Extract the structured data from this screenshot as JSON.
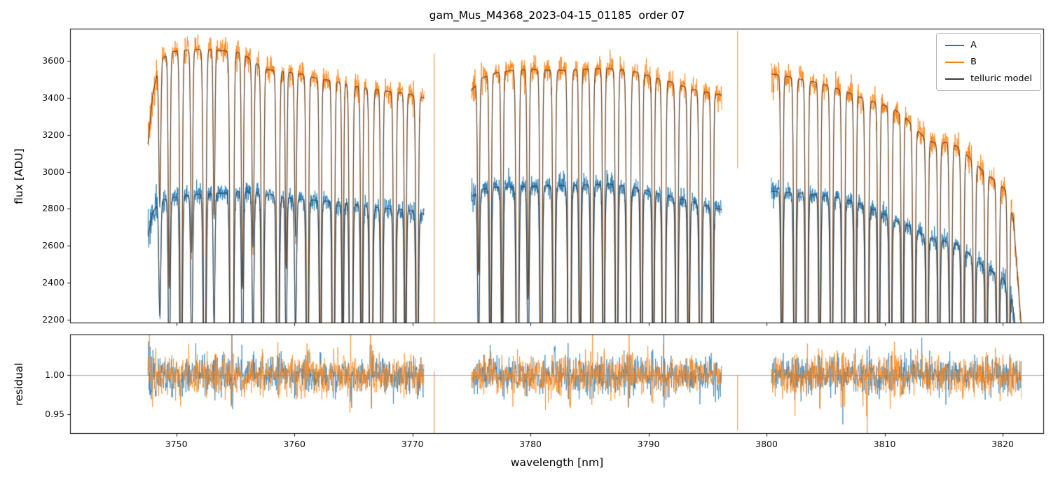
{
  "chart_data": {
    "type": "line",
    "title": "gam_Mus_M4368_2023-04-15_01185  order 07",
    "xlabel": "wavelength [nm]",
    "xlim": [
      3741,
      3823.5
    ],
    "xticks": [
      "3750",
      "3760",
      "3770",
      "3780",
      "3790",
      "3800",
      "3810",
      "3820"
    ],
    "grid": false,
    "legend_position": "upper right",
    "panels": [
      {
        "name": "flux",
        "ylabel": "flux [ADU]",
        "ylim": [
          2180,
          3775
        ],
        "yticks": [
          "2200",
          "2400",
          "2600",
          "2800",
          "3000",
          "3200",
          "3400",
          "3600"
        ]
      },
      {
        "name": "residual",
        "ylabel": "residual",
        "ylim": [
          0.925,
          1.052
        ],
        "yticks": [
          "0.95",
          "1.00"
        ],
        "baseline": 1.0
      }
    ],
    "segments": [
      [
        3747.6,
        3771.0
      ],
      [
        3775.0,
        3796.2
      ],
      [
        3800.4,
        3821.6
      ]
    ],
    "model_color": "#333333",
    "residual_baseline": 1.0,
    "series": [
      {
        "name": "A",
        "color": "#1f77b4",
        "noise_sigma": 26,
        "residual_sigma": 0.011,
        "continuum": [
          [
            3747.6,
            2650
          ],
          [
            3748.0,
            2780
          ],
          [
            3748.6,
            2845
          ],
          [
            3750,
            2865
          ],
          [
            3752,
            2880
          ],
          [
            3754,
            2885
          ],
          [
            3755.5,
            2895
          ],
          [
            3757,
            2885
          ],
          [
            3758.5,
            2870
          ],
          [
            3760,
            2855
          ],
          [
            3762,
            2845
          ],
          [
            3764,
            2835
          ],
          [
            3766,
            2815
          ],
          [
            3768,
            2800
          ],
          [
            3769.5,
            2795
          ],
          [
            3771.0,
            2770
          ],
          [
            3775.0,
            2865
          ],
          [
            3775.8,
            2905
          ],
          [
            3777,
            2915
          ],
          [
            3779,
            2920
          ],
          [
            3781,
            2925
          ],
          [
            3783,
            2925
          ],
          [
            3785,
            2930
          ],
          [
            3786.5,
            2935
          ],
          [
            3788,
            2925
          ],
          [
            3789.5,
            2905
          ],
          [
            3791,
            2880
          ],
          [
            3793,
            2850
          ],
          [
            3794.5,
            2825
          ],
          [
            3796.2,
            2795
          ],
          [
            3800.4,
            2895
          ],
          [
            3801.5,
            2890
          ],
          [
            3803,
            2885
          ],
          [
            3805,
            2870
          ],
          [
            3806.5,
            2855
          ],
          [
            3808,
            2825
          ],
          [
            3809.5,
            2785
          ],
          [
            3811,
            2735
          ],
          [
            3812.5,
            2695
          ],
          [
            3813.5,
            2645
          ],
          [
            3815,
            2625
          ],
          [
            3816,
            2610
          ],
          [
            3817,
            2565
          ],
          [
            3818,
            2510
          ],
          [
            3819,
            2465
          ],
          [
            3820,
            2425
          ],
          [
            3820.7,
            2340
          ],
          [
            3821.2,
            2100
          ]
        ]
      },
      {
        "name": "B",
        "color": "#ff7f0e",
        "noise_sigma": 33,
        "residual_sigma": 0.0125,
        "continuum": [
          [
            3747.6,
            3150
          ],
          [
            3748.0,
            3420
          ],
          [
            3748.6,
            3600
          ],
          [
            3749.5,
            3650
          ],
          [
            3751,
            3660
          ],
          [
            3752.5,
            3665
          ],
          [
            3754,
            3655
          ],
          [
            3755.5,
            3645
          ],
          [
            3756.5,
            3600
          ],
          [
            3757.5,
            3555
          ],
          [
            3759,
            3545
          ],
          [
            3760.5,
            3530
          ],
          [
            3762,
            3505
          ],
          [
            3763.5,
            3490
          ],
          [
            3765,
            3465
          ],
          [
            3766.5,
            3450
          ],
          [
            3768,
            3435
          ],
          [
            3769.5,
            3425
          ],
          [
            3771.0,
            3400
          ],
          [
            3775.0,
            3440
          ],
          [
            3775.8,
            3505
          ],
          [
            3777,
            3535
          ],
          [
            3778.5,
            3550
          ],
          [
            3780,
            3555
          ],
          [
            3781.5,
            3550
          ],
          [
            3783,
            3550
          ],
          [
            3784.5,
            3555
          ],
          [
            3786,
            3560
          ],
          [
            3787.5,
            3555
          ],
          [
            3789,
            3540
          ],
          [
            3790.5,
            3510
          ],
          [
            3792,
            3485
          ],
          [
            3793.5,
            3450
          ],
          [
            3795,
            3430
          ],
          [
            3796.2,
            3415
          ],
          [
            3800.4,
            3530
          ],
          [
            3801.5,
            3520
          ],
          [
            3803,
            3500
          ],
          [
            3804.5,
            3480
          ],
          [
            3806,
            3450
          ],
          [
            3807.5,
            3415
          ],
          [
            3809,
            3380
          ],
          [
            3810.5,
            3350
          ],
          [
            3811.5,
            3310
          ],
          [
            3812.5,
            3245
          ],
          [
            3813.5,
            3175
          ],
          [
            3814.5,
            3150
          ],
          [
            3815.5,
            3165
          ],
          [
            3816.5,
            3120
          ],
          [
            3817.5,
            3055
          ],
          [
            3818.5,
            2995
          ],
          [
            3819.5,
            2945
          ],
          [
            3820.3,
            2900
          ],
          [
            3820.9,
            2750
          ],
          [
            3821.6,
            2150
          ]
        ]
      }
    ],
    "telluric_lines_format": [
      "wavelength_nm",
      "depth",
      "width_nm"
    ],
    "telluric_lines": [
      [
        3748.6,
        0.22,
        0.08
      ],
      [
        3749.4,
        0.35,
        0.08
      ],
      [
        3750.4,
        0.55,
        0.09
      ],
      [
        3751.3,
        0.3,
        0.08
      ],
      [
        3752.4,
        0.6,
        0.1
      ],
      [
        3753.2,
        0.25,
        0.07
      ],
      [
        3754.7,
        0.97,
        0.11
      ],
      [
        3755.6,
        0.35,
        0.08
      ],
      [
        3756.5,
        0.28,
        0.08
      ],
      [
        3757.3,
        0.55,
        0.09
      ],
      [
        3758.6,
        0.6,
        0.1
      ],
      [
        3759.3,
        0.3,
        0.07
      ],
      [
        3760.1,
        0.25,
        0.08
      ],
      [
        3761.1,
        0.55,
        0.09
      ],
      [
        3762.2,
        0.45,
        0.08
      ],
      [
        3763.3,
        0.65,
        0.09
      ],
      [
        3764.1,
        0.4,
        0.07
      ],
      [
        3764.8,
        0.97,
        0.1
      ],
      [
        3765.7,
        0.45,
        0.08
      ],
      [
        3766.5,
        0.9,
        0.1
      ],
      [
        3767.4,
        0.5,
        0.08
      ],
      [
        3768.5,
        0.55,
        0.09
      ],
      [
        3769.4,
        0.4,
        0.08
      ],
      [
        3770.4,
        0.5,
        0.09
      ],
      [
        3775.6,
        0.3,
        0.08
      ],
      [
        3776.6,
        0.45,
        0.08
      ],
      [
        3777.6,
        0.4,
        0.08
      ],
      [
        3778.9,
        0.6,
        0.1
      ],
      [
        3779.8,
        0.35,
        0.08
      ],
      [
        3780.9,
        0.5,
        0.09
      ],
      [
        3782.0,
        0.55,
        0.09
      ],
      [
        3783.3,
        0.9,
        0.1
      ],
      [
        3784.2,
        0.45,
        0.08
      ],
      [
        3785.2,
        0.55,
        0.09
      ],
      [
        3786.2,
        0.5,
        0.08
      ],
      [
        3787.3,
        0.6,
        0.09
      ],
      [
        3788.3,
        0.96,
        0.11
      ],
      [
        3789.4,
        0.5,
        0.08
      ],
      [
        3790.4,
        0.45,
        0.08
      ],
      [
        3791.3,
        0.95,
        0.1
      ],
      [
        3792.4,
        0.55,
        0.09
      ],
      [
        3793.4,
        0.45,
        0.08
      ],
      [
        3794.4,
        0.6,
        0.09
      ],
      [
        3795.4,
        0.5,
        0.08
      ],
      [
        3801.3,
        0.45,
        0.08
      ],
      [
        3802.4,
        0.55,
        0.09
      ],
      [
        3803.4,
        0.7,
        0.09
      ],
      [
        3804.5,
        0.45,
        0.08
      ],
      [
        3805.5,
        0.6,
        0.09
      ],
      [
        3806.5,
        0.8,
        0.09
      ],
      [
        3807.5,
        0.5,
        0.08
      ],
      [
        3808.5,
        0.92,
        0.1
      ],
      [
        3809.5,
        0.5,
        0.08
      ],
      [
        3810.5,
        0.6,
        0.09
      ],
      [
        3811.5,
        0.5,
        0.08
      ],
      [
        3812.5,
        0.55,
        0.09
      ],
      [
        3813.6,
        0.5,
        0.08
      ],
      [
        3814.6,
        0.45,
        0.08
      ],
      [
        3815.6,
        0.5,
        0.09
      ],
      [
        3816.6,
        0.55,
        0.09
      ],
      [
        3817.6,
        0.5,
        0.08
      ],
      [
        3818.6,
        0.45,
        0.08
      ],
      [
        3819.6,
        0.5,
        0.09
      ],
      [
        3820.5,
        0.45,
        0.08
      ]
    ],
    "spikes": [
      {
        "wl": 3771.85,
        "color": "#ff7f0e",
        "flux_range": [
          2185,
          3640
        ],
        "residual_range": [
          0.925,
          1.005
        ]
      },
      {
        "wl": 3797.55,
        "color": "#ff7f0e",
        "flux_range": [
          3020,
          3762
        ],
        "residual_range": [
          0.93,
          1.0
        ]
      }
    ]
  },
  "legend": {
    "entries": [
      {
        "label": "A",
        "color": "#1f77b4"
      },
      {
        "label": "B",
        "color": "#ff7f0e"
      },
      {
        "label": "telluric model",
        "color": "#3c3c3c"
      }
    ]
  }
}
